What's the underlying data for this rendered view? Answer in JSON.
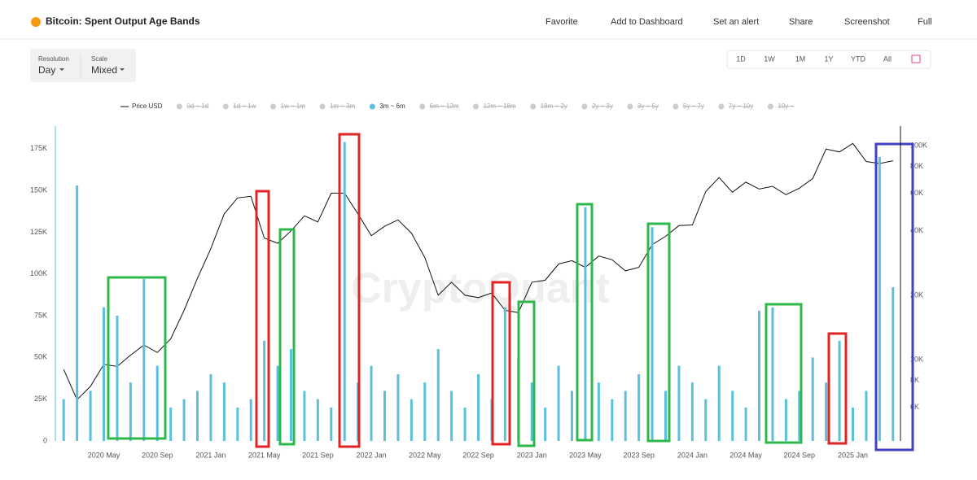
{
  "header": {
    "title": "Bitcoin: Spent Output Age Bands",
    "toolbar": [
      "Favorite",
      "Add to Dashboard",
      "Set an alert",
      "Share",
      "Screenshot",
      "Full"
    ]
  },
  "controls": {
    "resolution": {
      "label": "Resolution",
      "value": "Day"
    },
    "scale": {
      "label": "Scale",
      "value": "Mixed"
    },
    "ranges": [
      "1D",
      "1W",
      "1M",
      "1Y",
      "YTD",
      "All"
    ]
  },
  "chart_data": {
    "type": "combo",
    "watermark": "CryptoQuant",
    "categories": [
      null,
      null,
      null,
      "2020 May",
      null,
      null,
      null,
      "2020 Sep",
      null,
      null,
      null,
      "2021 Jan",
      null,
      null,
      null,
      "2021 May",
      null,
      null,
      null,
      "2021 Sep",
      null,
      null,
      null,
      "2022 Jan",
      null,
      null,
      null,
      "2022 May",
      null,
      null,
      null,
      "2022 Sep",
      null,
      null,
      null,
      "2023 Jan",
      null,
      null,
      null,
      "2023 May",
      null,
      null,
      null,
      "2023 Sep",
      null,
      null,
      null,
      "2024 Jan",
      null,
      null,
      null,
      "2024 May",
      null,
      null,
      null,
      "2024 Sep",
      null,
      null,
      null,
      "2025 Jan",
      null,
      null,
      null
    ],
    "series": [
      {
        "name": "Price USD",
        "color": "#111111",
        "axis": "y2",
        "kind": "line",
        "visible": true,
        "values": [
          9000,
          6500,
          7500,
          9500,
          9300,
          10500,
          11700,
          10800,
          12500,
          17000,
          24000,
          33000,
          48000,
          57000,
          58000,
          37000,
          35000,
          40000,
          47000,
          44000,
          60000,
          60000,
          48000,
          38000,
          42000,
          45000,
          39000,
          30000,
          20000,
          23000,
          20000,
          19500,
          20500,
          17000,
          16600,
          23000,
          23500,
          28000,
          29000,
          27000,
          30500,
          29300,
          26000,
          27000,
          34500,
          37700,
          42300,
          42600,
          61000,
          71000,
          60600,
          67500,
          62700,
          64600,
          59000,
          63300,
          70200,
          96400,
          93400,
          102400,
          84300,
          82500,
          85000
        ]
      },
      {
        "name": "0d ~ 1d",
        "visible": false
      },
      {
        "name": "1d ~ 1w",
        "visible": false
      },
      {
        "name": "1w ~ 1m",
        "visible": false
      },
      {
        "name": "1m ~ 3m",
        "visible": false
      },
      {
        "name": "3m ~ 6m",
        "color": "#5bc0de",
        "axis": "y",
        "kind": "bar",
        "visible": true,
        "values": [
          25000,
          153000,
          30000,
          80000,
          75000,
          35000,
          97000,
          45000,
          20000,
          25000,
          30000,
          40000,
          35000,
          20000,
          25000,
          60000,
          45000,
          55000,
          30000,
          25000,
          20000,
          179000,
          35000,
          45000,
          30000,
          40000,
          25000,
          35000,
          55000,
          30000,
          20000,
          40000,
          25000,
          80000,
          50000,
          35000,
          20000,
          45000,
          30000,
          140000,
          35000,
          25000,
          30000,
          40000,
          128000,
          30000,
          45000,
          35000,
          25000,
          45000,
          30000,
          20000,
          78000,
          80000,
          25000,
          30000,
          50000,
          35000,
          60000,
          20000,
          30000,
          170000,
          92000
        ]
      },
      {
        "name": "6m ~ 12m",
        "visible": false
      },
      {
        "name": "12m ~ 18m",
        "visible": false
      },
      {
        "name": "18m ~ 2y",
        "visible": false
      },
      {
        "name": "2y ~ 3y",
        "visible": false
      },
      {
        "name": "3y ~ 5y",
        "visible": false
      },
      {
        "name": "5y ~ 7y",
        "visible": false
      },
      {
        "name": "7y ~ 10y",
        "visible": false
      },
      {
        "name": "10y ~",
        "visible": false
      }
    ],
    "ylim": [
      0,
      190000
    ],
    "yticks": [
      0,
      {
        "value": 25000,
        "label": "25K"
      },
      {
        "value": 50000,
        "label": "50K"
      },
      {
        "value": 75000,
        "label": "75K"
      },
      {
        "value": 100000,
        "label": "100K"
      },
      {
        "value": 125000,
        "label": "125K"
      },
      {
        "value": 150000,
        "label": "150K"
      },
      {
        "value": 175000,
        "label": "175K"
      }
    ],
    "y2lim": [
      4170,
      126700
    ],
    "y2log": true,
    "y2ticks": [
      {
        "value": 6000,
        "label": "6K"
      },
      {
        "value": 8000,
        "label": "8K"
      },
      {
        "value": 10000,
        "label": "10K"
      },
      {
        "value": 20000,
        "label": "20K"
      },
      {
        "value": 40000,
        "label": "40K"
      },
      {
        "value": 60000,
        "label": "60K"
      },
      {
        "value": 80000,
        "label": "80K"
      },
      {
        "value": 100000,
        "label": "100K"
      }
    ]
  }
}
